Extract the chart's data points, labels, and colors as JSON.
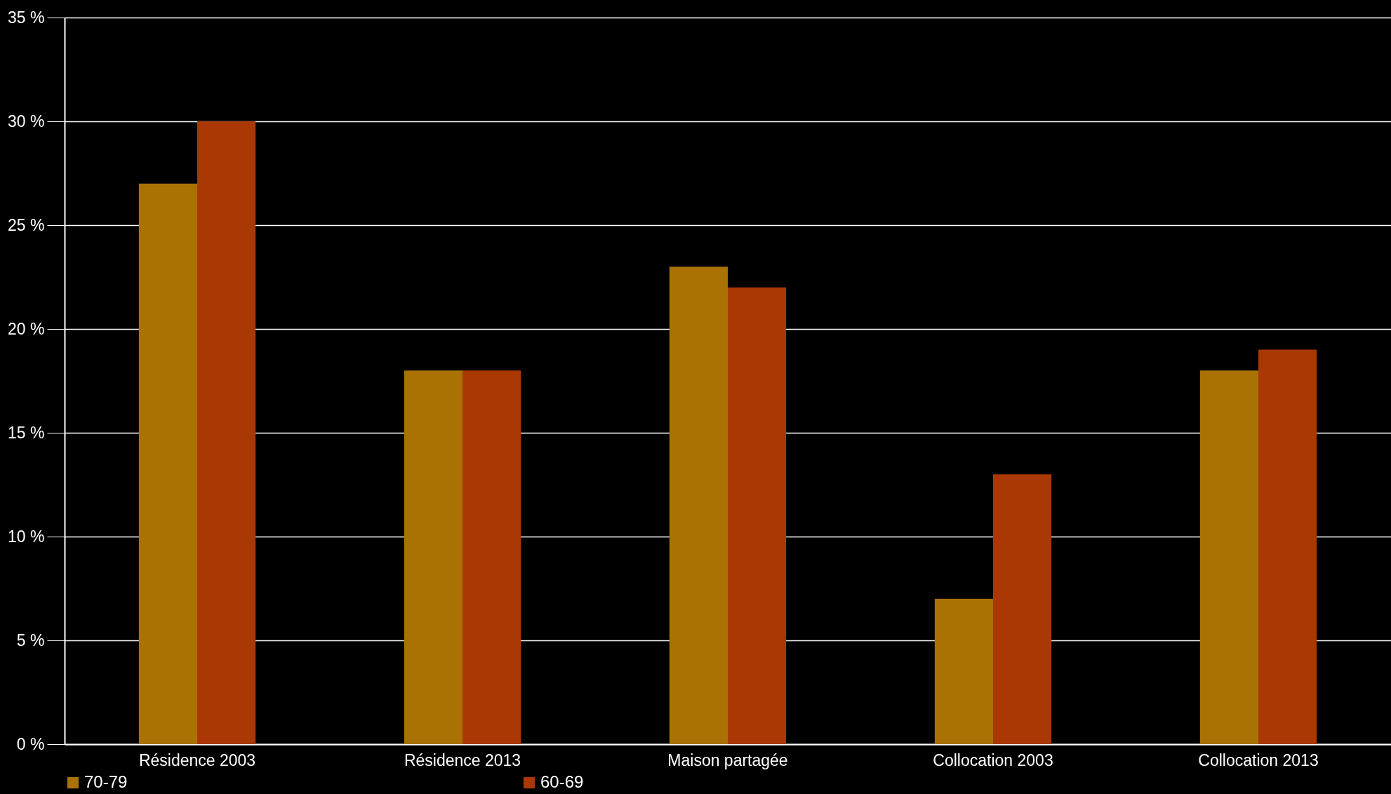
{
  "chart_data": {
    "type": "bar",
    "categories": [
      "Résidence 2003",
      "Résidence 2013",
      "Maison partagée",
      "Collocation 2003",
      "Collocation 2013"
    ],
    "series": [
      {
        "name": "70-79",
        "color": "#aa7205",
        "values": [
          27,
          18,
          23,
          7,
          18
        ]
      },
      {
        "name": "60-69",
        "color": "#aa3805",
        "values": [
          30,
          18,
          22,
          13,
          19
        ]
      }
    ],
    "ylim": [
      0,
      35
    ],
    "yticks": [
      {
        "value": 0,
        "label": "0 %"
      },
      {
        "value": 5,
        "label": "5 %"
      },
      {
        "value": 10,
        "label": "10 %"
      },
      {
        "value": 15,
        "label": "15 %"
      },
      {
        "value": 20,
        "label": "20 %"
      },
      {
        "value": 25,
        "label": "25 %"
      },
      {
        "value": 30,
        "label": "30 %"
      },
      {
        "value": 35,
        "label": "35 %"
      }
    ],
    "grid": "y",
    "legend": "bottom"
  }
}
